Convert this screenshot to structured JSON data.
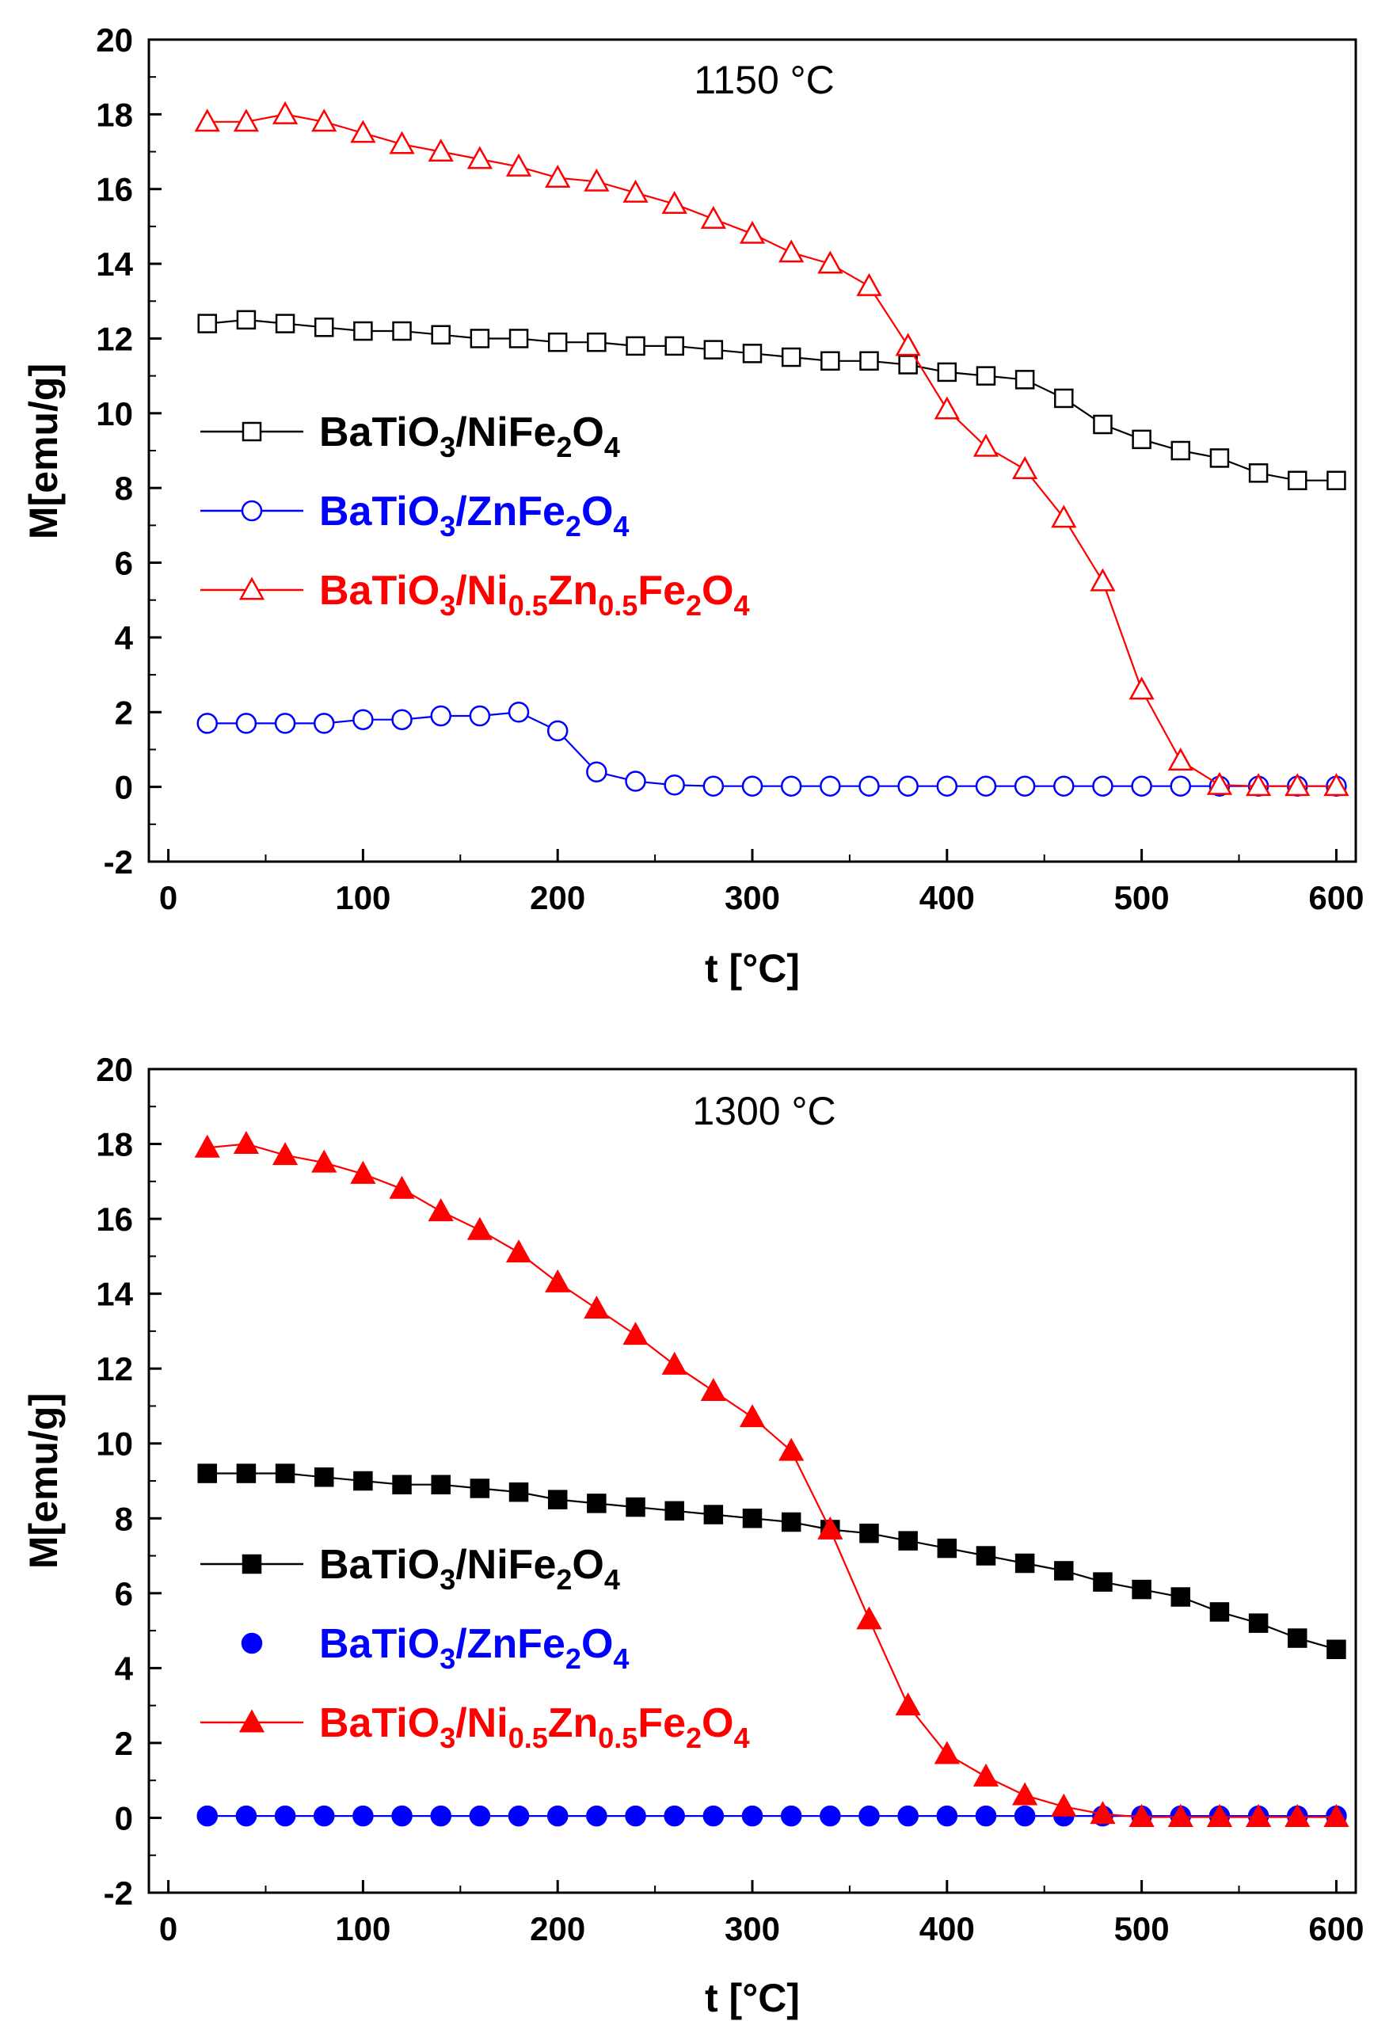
{
  "chart_data": [
    {
      "type": "line",
      "title": "1150 °C",
      "xlabel": "t [°C]",
      "ylabel": "M[emu/g]",
      "xlim": [
        -10,
        610
      ],
      "ylim": [
        -2,
        20
      ],
      "xticks": [
        "0",
        "100",
        "200",
        "300",
        "400",
        "500",
        "600"
      ],
      "yticks": [
        "-2",
        "0",
        "2",
        "4",
        "6",
        "8",
        "10",
        "12",
        "14",
        "16",
        "18",
        "20"
      ],
      "legend_position": "middle-left",
      "x": [
        20,
        40,
        60,
        80,
        100,
        120,
        140,
        160,
        180,
        200,
        220,
        240,
        260,
        280,
        300,
        320,
        340,
        360,
        380,
        400,
        420,
        440,
        460,
        480,
        500,
        520,
        540,
        560,
        580,
        600
      ],
      "series": [
        {
          "name": "BaTiO3/NiFe2O4",
          "legend_parts": [
            [
              "BaTiO",
              "n"
            ],
            [
              "3",
              "sub"
            ],
            [
              "/NiFe",
              "n"
            ],
            [
              "2",
              "sub"
            ],
            [
              "O",
              "n"
            ],
            [
              "4",
              "sub"
            ]
          ],
          "color": "#000000",
          "marker": "square",
          "filled": false,
          "values": [
            12.4,
            12.5,
            12.4,
            12.3,
            12.2,
            12.2,
            12.1,
            12.0,
            12.0,
            11.9,
            11.9,
            11.8,
            11.8,
            11.7,
            11.6,
            11.5,
            11.4,
            11.4,
            11.3,
            11.1,
            11.0,
            10.9,
            10.4,
            9.7,
            9.3,
            9.0,
            8.8,
            8.4,
            8.2,
            8.2
          ]
        },
        {
          "name": "BaTiO3/ZnFe2O4",
          "legend_parts": [
            [
              "BaTiO",
              "n"
            ],
            [
              "3",
              "sub"
            ],
            [
              "/ZnFe",
              "n"
            ],
            [
              "2",
              "sub"
            ],
            [
              "O",
              "n"
            ],
            [
              "4",
              "sub"
            ]
          ],
          "color": "#0000ff",
          "marker": "circle",
          "filled": false,
          "values": [
            1.7,
            1.7,
            1.7,
            1.7,
            1.8,
            1.8,
            1.9,
            1.9,
            2.0,
            1.5,
            0.4,
            0.15,
            0.05,
            0.02,
            0.02,
            0.02,
            0.02,
            0.02,
            0.02,
            0.02,
            0.02,
            0.02,
            0.02,
            0.02,
            0.02,
            0.02,
            0.02,
            0.02,
            0.02,
            0.02
          ]
        },
        {
          "name": "BaTiO3/Ni0.5Zn0.5Fe2O4",
          "legend_parts": [
            [
              "BaTiO",
              "n"
            ],
            [
              "3",
              "sub"
            ],
            [
              "/Ni",
              "n"
            ],
            [
              "0.5",
              "sub"
            ],
            [
              "Zn",
              "n"
            ],
            [
              "0.5",
              "sub"
            ],
            [
              "Fe",
              "n"
            ],
            [
              "2",
              "sub"
            ],
            [
              "O",
              "n"
            ],
            [
              "4",
              "sub"
            ]
          ],
          "color": "#ff0000",
          "marker": "triangle",
          "filled": false,
          "values": [
            17.8,
            17.8,
            18.0,
            17.8,
            17.5,
            17.2,
            17.0,
            16.8,
            16.6,
            16.3,
            16.2,
            15.9,
            15.6,
            15.2,
            14.8,
            14.3,
            14.0,
            13.4,
            11.8,
            10.1,
            9.1,
            8.5,
            7.2,
            5.5,
            2.6,
            0.7,
            0.05,
            0.02,
            0.02,
            0.02
          ]
        }
      ]
    },
    {
      "type": "line",
      "title": "1300 °C",
      "xlabel": "t [°C]",
      "ylabel": "M[emu/g]",
      "xlim": [
        -10,
        610
      ],
      "ylim": [
        -2,
        20
      ],
      "xticks": [
        "0",
        "100",
        "200",
        "300",
        "400",
        "500",
        "600"
      ],
      "yticks": [
        "-2",
        "0",
        "2",
        "4",
        "6",
        "8",
        "10",
        "12",
        "14",
        "16",
        "18",
        "20"
      ],
      "legend_position": "lower-left",
      "x": [
        20,
        40,
        60,
        80,
        100,
        120,
        140,
        160,
        180,
        200,
        220,
        240,
        260,
        280,
        300,
        320,
        340,
        360,
        380,
        400,
        420,
        440,
        460,
        480,
        500,
        520,
        540,
        560,
        580,
        600
      ],
      "series": [
        {
          "name": "BaTiO3/NiFe2O4",
          "legend_parts": [
            [
              "BaTiO",
              "n"
            ],
            [
              "3",
              "sub"
            ],
            [
              "/NiFe",
              "n"
            ],
            [
              "2",
              "sub"
            ],
            [
              "O",
              "n"
            ],
            [
              "4",
              "sub"
            ]
          ],
          "color": "#000000",
          "marker": "square",
          "filled": true,
          "values": [
            9.2,
            9.2,
            9.2,
            9.1,
            9.0,
            8.9,
            8.9,
            8.8,
            8.7,
            8.5,
            8.4,
            8.3,
            8.2,
            8.1,
            8.0,
            7.9,
            7.7,
            7.6,
            7.4,
            7.2,
            7.0,
            6.8,
            6.6,
            6.3,
            6.1,
            5.9,
            5.5,
            5.2,
            4.8,
            4.5
          ]
        },
        {
          "name": "BaTiO3/ZnFe2O4",
          "legend_parts": [
            [
              "BaTiO",
              "n"
            ],
            [
              "3",
              "sub"
            ],
            [
              "/ZnFe",
              "n"
            ],
            [
              "2",
              "sub"
            ],
            [
              "O",
              "n"
            ],
            [
              "4",
              "sub"
            ]
          ],
          "color": "#0000ff",
          "marker": "circle",
          "filled": true,
          "values": [
            0.05,
            0.05,
            0.05,
            0.05,
            0.05,
            0.05,
            0.05,
            0.05,
            0.05,
            0.05,
            0.05,
            0.05,
            0.05,
            0.05,
            0.05,
            0.05,
            0.05,
            0.05,
            0.05,
            0.05,
            0.05,
            0.05,
            0.05,
            0.05,
            0.05,
            0.05,
            0.05,
            0.05,
            0.05,
            0.05
          ]
        },
        {
          "name": "BaTiO3/Ni0.5Zn0.5Fe2O4",
          "legend_parts": [
            [
              "BaTiO",
              "n"
            ],
            [
              "3",
              "sub"
            ],
            [
              "/Ni",
              "n"
            ],
            [
              "0.5",
              "sub"
            ],
            [
              "Zn",
              "n"
            ],
            [
              "0.5",
              "sub"
            ],
            [
              "Fe",
              "n"
            ],
            [
              "2",
              "sub"
            ],
            [
              "O",
              "n"
            ],
            [
              "4",
              "sub"
            ]
          ],
          "color": "#ff0000",
          "marker": "triangle",
          "filled": true,
          "values": [
            17.9,
            18.0,
            17.7,
            17.5,
            17.2,
            16.8,
            16.2,
            15.7,
            15.1,
            14.3,
            13.6,
            12.9,
            12.1,
            11.4,
            10.7,
            9.8,
            7.7,
            5.3,
            3.0,
            1.7,
            1.1,
            0.6,
            0.3,
            0.1,
            0.02,
            0.02,
            0.02,
            0.02,
            0.02,
            0.02
          ]
        }
      ]
    }
  ]
}
